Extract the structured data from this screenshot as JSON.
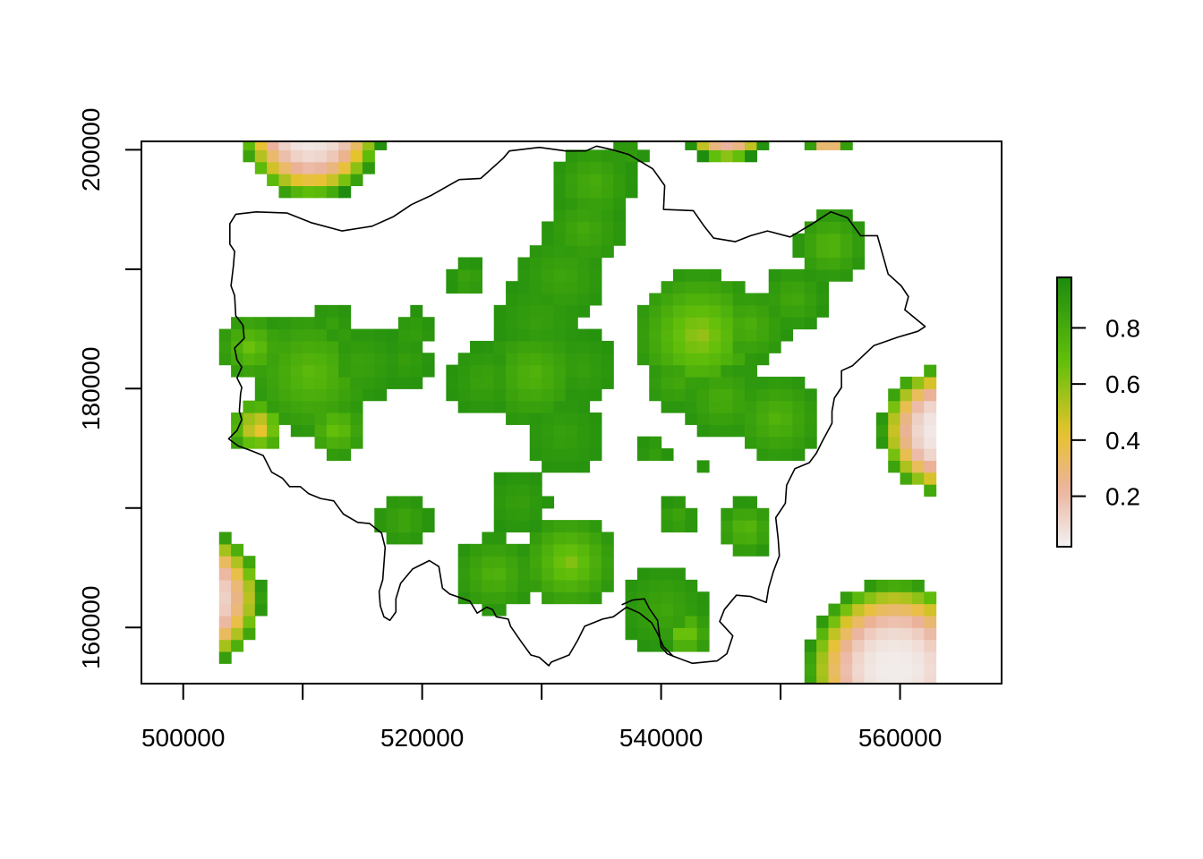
{
  "chart_data": {
    "type": "heatmap",
    "title": "",
    "xlabel": "",
    "ylabel": "",
    "xlim": [
      496500,
      568500
    ],
    "ylim": [
      155300,
      200700
    ],
    "x_ticks": [
      500000,
      520000,
      540000,
      560000
    ],
    "y_ticks": [
      160000,
      180000,
      200000
    ],
    "x_tick_labels": [
      "500000",
      "520000",
      "540000",
      "560000"
    ],
    "y_tick_labels": [
      "160000",
      "180000",
      "200000"
    ],
    "legend": {
      "placement": "right",
      "range": [
        0.02,
        0.98
      ],
      "ticks": [
        0.2,
        0.4,
        0.6,
        0.8
      ],
      "tick_labels": [
        "0.2",
        "0.4",
        "0.6",
        "0.8"
      ],
      "colors": [
        "#f2f2f2",
        "#ebb29b",
        "#e8c32e",
        "#64c00a",
        "#1d8c0f"
      ]
    },
    "grid": false,
    "raster_hotspots": [
      {
        "x": 534300,
        "y": 197200,
        "r": 3300,
        "v": 0.78
      },
      {
        "x": 533600,
        "y": 193300,
        "r": 3300,
        "v": 0.8
      },
      {
        "x": 531700,
        "y": 189400,
        "r": 3800,
        "v": 0.83
      },
      {
        "x": 529800,
        "y": 185800,
        "r": 3700,
        "v": 0.86
      },
      {
        "x": 529300,
        "y": 181200,
        "r": 4300,
        "v": 0.74
      },
      {
        "x": 525200,
        "y": 180800,
        "r": 3000,
        "v": 0.84
      },
      {
        "x": 531800,
        "y": 176200,
        "r": 3300,
        "v": 0.86
      },
      {
        "x": 533300,
        "y": 181800,
        "r": 3000,
        "v": 0.86
      },
      {
        "x": 528100,
        "y": 170500,
        "r": 2600,
        "v": 0.86
      },
      {
        "x": 532300,
        "y": 165500,
        "r": 3900,
        "v": 0.6
      },
      {
        "x": 526100,
        "y": 164500,
        "r": 3300,
        "v": 0.74
      },
      {
        "x": 518400,
        "y": 169000,
        "r": 2300,
        "v": 0.82
      },
      {
        "x": 523800,
        "y": 189200,
        "r": 1500,
        "v": 0.82
      },
      {
        "x": 543200,
        "y": 184500,
        "r": 5300,
        "v": 0.56
      },
      {
        "x": 547300,
        "y": 185200,
        "r": 3300,
        "v": 0.76
      },
      {
        "x": 551100,
        "y": 187600,
        "r": 2700,
        "v": 0.8
      },
      {
        "x": 554200,
        "y": 192000,
        "r": 2900,
        "v": 0.72
      },
      {
        "x": 545100,
        "y": 179200,
        "r": 3300,
        "v": 0.78
      },
      {
        "x": 549700,
        "y": 177500,
        "r": 3700,
        "v": 0.74
      },
      {
        "x": 541200,
        "y": 180700,
        "r": 2600,
        "v": 0.8
      },
      {
        "x": 547100,
        "y": 168300,
        "r": 2300,
        "v": 0.7
      },
      {
        "x": 541300,
        "y": 169200,
        "r": 1600,
        "v": 0.82
      },
      {
        "x": 539400,
        "y": 174800,
        "r": 1300,
        "v": 0.86
      },
      {
        "x": 543200,
        "y": 173800,
        "r": 700,
        "v": 0.9
      },
      {
        "x": 540300,
        "y": 161600,
        "r": 3600,
        "v": 0.82
      },
      {
        "x": 542000,
        "y": 159500,
        "r": 2000,
        "v": 0.58
      },
      {
        "x": 510700,
        "y": 181300,
        "r": 5200,
        "v": 0.7
      },
      {
        "x": 505700,
        "y": 183500,
        "r": 2700,
        "v": 0.64
      },
      {
        "x": 506200,
        "y": 176800,
        "r": 2300,
        "v": 0.32
      },
      {
        "x": 512800,
        "y": 176600,
        "r": 2400,
        "v": 0.64
      },
      {
        "x": 514900,
        "y": 182100,
        "r": 3200,
        "v": 0.84
      },
      {
        "x": 518700,
        "y": 182300,
        "r": 2100,
        "v": 0.86
      },
      {
        "x": 512400,
        "y": 185500,
        "r": 1800,
        "v": 0.86
      },
      {
        "x": 519200,
        "y": 184800,
        "r": 1800,
        "v": 0.86
      },
      {
        "x": 537100,
        "y": 199800,
        "r": 1500,
        "v": 0.86
      }
    ],
    "edge_patches": [
      {
        "x": 510700,
        "y": 201800,
        "r": 6000,
        "v": 0.05
      },
      {
        "x": 545500,
        "y": 202600,
        "r": 3700,
        "v": 0.05
      },
      {
        "x": 554000,
        "y": 201700,
        "r": 2000,
        "v": 0.05
      },
      {
        "x": 500800,
        "y": 162500,
        "r": 5900,
        "v": 0.04
      },
      {
        "x": 559600,
        "y": 156500,
        "r": 7500,
        "v": 0.04
      },
      {
        "x": 563800,
        "y": 176500,
        "r": 5500,
        "v": 0.04
      }
    ],
    "boundary": [
      [
        508700,
        194700
      ],
      [
        510700,
        193900
      ],
      [
        513300,
        193200
      ],
      [
        515800,
        193600
      ],
      [
        517600,
        194400
      ],
      [
        519100,
        195400
      ],
      [
        520800,
        196200
      ],
      [
        523100,
        197500
      ],
      [
        524900,
        197600
      ],
      [
        526800,
        199300
      ],
      [
        527300,
        199900
      ],
      [
        529800,
        200200
      ],
      [
        532000,
        199900
      ],
      [
        533700,
        199900
      ],
      [
        534600,
        200300
      ],
      [
        535900,
        200000
      ],
      [
        537300,
        199600
      ],
      [
        539300,
        198400
      ],
      [
        540300,
        197000
      ],
      [
        540200,
        195000
      ],
      [
        542700,
        194900
      ],
      [
        543600,
        193600
      ],
      [
        544400,
        192600
      ],
      [
        546200,
        192300
      ],
      [
        547500,
        192800
      ],
      [
        548900,
        193200
      ],
      [
        550800,
        192700
      ],
      [
        552500,
        193700
      ],
      [
        554200,
        194800
      ],
      [
        555600,
        194300
      ],
      [
        556700,
        192800
      ],
      [
        558100,
        192800
      ],
      [
        559000,
        189600
      ],
      [
        560100,
        188600
      ],
      [
        560700,
        187700
      ],
      [
        560400,
        186600
      ],
      [
        562100,
        185200
      ],
      [
        561500,
        184800
      ],
      [
        559800,
        184300
      ],
      [
        557800,
        183600
      ],
      [
        556000,
        181900
      ],
      [
        555100,
        181500
      ],
      [
        555100,
        180100
      ],
      [
        554500,
        179200
      ],
      [
        554300,
        178100
      ],
      [
        554300,
        177100
      ],
      [
        553500,
        175600
      ],
      [
        553000,
        174600
      ],
      [
        552400,
        173800
      ],
      [
        551200,
        173300
      ],
      [
        550500,
        171900
      ],
      [
        550400,
        170400
      ],
      [
        549600,
        169200
      ],
      [
        549800,
        167400
      ],
      [
        549900,
        166000
      ],
      [
        549400,
        164700
      ],
      [
        549000,
        163300
      ],
      [
        548800,
        162100
      ],
      [
        547500,
        162600
      ],
      [
        546300,
        162700
      ],
      [
        545300,
        161500
      ],
      [
        544900,
        160500
      ],
      [
        546000,
        159300
      ],
      [
        545500,
        157800
      ],
      [
        544700,
        157200
      ],
      [
        542600,
        157000
      ],
      [
        541000,
        157600
      ],
      [
        540200,
        158400
      ],
      [
        539700,
        159500
      ],
      [
        539200,
        160400
      ],
      [
        538200,
        161200
      ],
      [
        537100,
        161700
      ],
      [
        536000,
        160900
      ],
      [
        535100,
        160700
      ],
      [
        533600,
        160100
      ],
      [
        533000,
        158900
      ],
      [
        532300,
        157700
      ],
      [
        530800,
        157100
      ],
      [
        530600,
        156800
      ],
      [
        529800,
        157500
      ],
      [
        529100,
        157700
      ],
      [
        528300,
        158800
      ],
      [
        527400,
        160100
      ],
      [
        527200,
        160700
      ],
      [
        526200,
        160900
      ],
      [
        525900,
        161500
      ],
      [
        525400,
        161700
      ],
      [
        524600,
        161200
      ],
      [
        524000,
        162200
      ],
      [
        522900,
        162600
      ],
      [
        522300,
        162800
      ],
      [
        521700,
        163300
      ],
      [
        521400,
        165100
      ],
      [
        520600,
        165600
      ],
      [
        519200,
        164900
      ],
      [
        518200,
        163700
      ],
      [
        517800,
        162400
      ],
      [
        517800,
        161300
      ],
      [
        517300,
        160600
      ],
      [
        516800,
        160900
      ],
      [
        516500,
        161800
      ],
      [
        516400,
        163000
      ],
      [
        516700,
        164000
      ],
      [
        516800,
        165300
      ],
      [
        516900,
        166700
      ],
      [
        516600,
        167900
      ],
      [
        515600,
        168700
      ],
      [
        514600,
        168800
      ],
      [
        513400,
        169500
      ],
      [
        512600,
        170600
      ],
      [
        511500,
        170800
      ],
      [
        510500,
        171200
      ],
      [
        509800,
        171800
      ],
      [
        508900,
        171800
      ],
      [
        508300,
        172500
      ],
      [
        507400,
        173000
      ],
      [
        506700,
        174400
      ],
      [
        505700,
        174800
      ],
      [
        504600,
        175200
      ],
      [
        503800,
        175800
      ],
      [
        504500,
        176500
      ],
      [
        504900,
        177400
      ],
      [
        504700,
        178100
      ],
      [
        504800,
        179600
      ],
      [
        504900,
        180100
      ],
      [
        504500,
        180900
      ],
      [
        504900,
        181800
      ],
      [
        504500,
        182400
      ],
      [
        504300,
        183400
      ],
      [
        505100,
        184200
      ],
      [
        505000,
        185300
      ],
      [
        504400,
        186100
      ],
      [
        504300,
        187800
      ],
      [
        504000,
        188600
      ],
      [
        504200,
        190300
      ],
      [
        504300,
        191500
      ],
      [
        503900,
        192100
      ],
      [
        503900,
        193800
      ],
      [
        504400,
        194600
      ],
      [
        506100,
        194800
      ],
      [
        508700,
        194700
      ]
    ],
    "boundary_inner": [
      [
        536700,
        161900
      ],
      [
        537600,
        162300
      ],
      [
        538600,
        162400
      ],
      [
        539000,
        161600
      ],
      [
        539700,
        160600
      ],
      [
        539800,
        159800
      ],
      [
        540000,
        158400
      ],
      [
        540500,
        157800
      ],
      [
        541000,
        157600
      ]
    ]
  }
}
